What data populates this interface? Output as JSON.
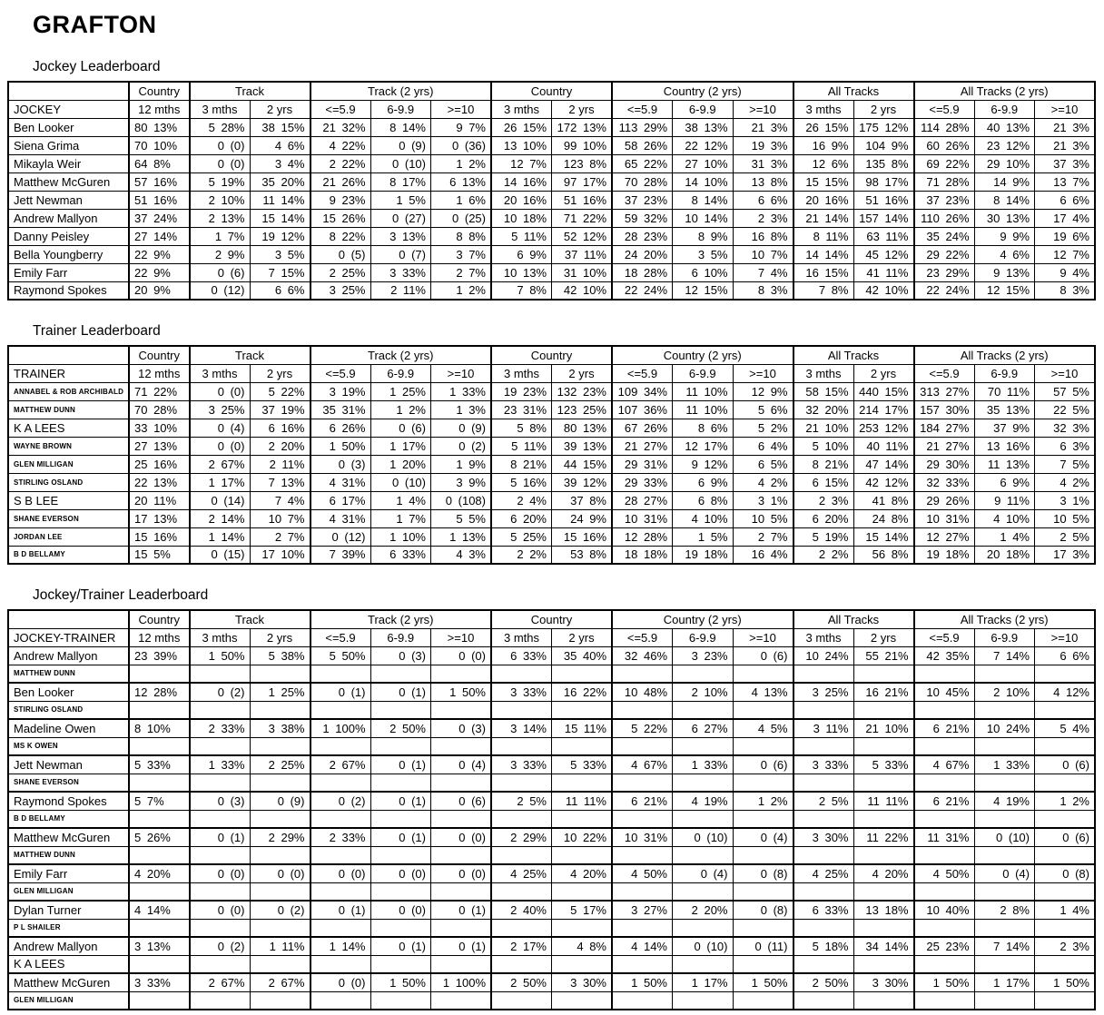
{
  "title": "GRAFTON",
  "colors": {
    "text": "#000000",
    "background": "#ffffff",
    "border": "#000000"
  },
  "column_groups": [
    {
      "label": "Country",
      "span": 1
    },
    {
      "label": "Track",
      "span": 2
    },
    {
      "label": "Track (2 yrs)",
      "span": 3
    },
    {
      "label": "Country",
      "span": 2
    },
    {
      "label": "Country (2 yrs)",
      "span": 3
    },
    {
      "label": "All Tracks",
      "span": 2
    },
    {
      "label": "All Tracks (2 yrs)",
      "span": 3
    }
  ],
  "sub_headers": [
    "12 mths",
    "3 mths",
    "2 yrs",
    "<=5.9",
    "6-9.9",
    ">=10",
    "3 mths",
    "2 yrs",
    "<=5.9",
    "6-9.9",
    ">=10",
    "3 mths",
    "2 yrs",
    "<=5.9",
    "6-9.9",
    ">=10"
  ],
  "tables": [
    {
      "section_title": "Jockey Leaderboard",
      "name_header": "JOCKEY",
      "rows": [
        {
          "name": "Ben Looker",
          "cells": [
            "80 13%",
            "5 28%",
            "38 15%",
            "21 32%",
            "8 14%",
            "9 7%",
            "26 15%",
            "172 13%",
            "113 29%",
            "38 13%",
            "21 3%",
            "26 15%",
            "175 12%",
            "114 28%",
            "40 13%",
            "21 3%"
          ]
        },
        {
          "name": "Siena Grima",
          "cells": [
            "70 10%",
            "0 (0)",
            "4 6%",
            "4 22%",
            "0 (9)",
            "0 (36)",
            "13 10%",
            "99 10%",
            "58 26%",
            "22 12%",
            "19 3%",
            "16 9%",
            "104 9%",
            "60 26%",
            "23 12%",
            "21 3%"
          ]
        },
        {
          "name": "Mikayla Weir",
          "cells": [
            "64 8%",
            "0 (0)",
            "3 4%",
            "2 22%",
            "0 (10)",
            "1 2%",
            "12 7%",
            "123 8%",
            "65 22%",
            "27 10%",
            "31 3%",
            "12 6%",
            "135 8%",
            "69 22%",
            "29 10%",
            "37 3%"
          ]
        },
        {
          "name": "Matthew McGuren",
          "cells": [
            "57 16%",
            "5 19%",
            "35 20%",
            "21 26%",
            "8 17%",
            "6 13%",
            "14 16%",
            "97 17%",
            "70 28%",
            "14 10%",
            "13 8%",
            "15 15%",
            "98 17%",
            "71 28%",
            "14 9%",
            "13 7%"
          ]
        },
        {
          "name": "Jett Newman",
          "cells": [
            "51 16%",
            "2 10%",
            "11 14%",
            "9 23%",
            "1 5%",
            "1 6%",
            "20 16%",
            "51 16%",
            "37 23%",
            "8 14%",
            "6 6%",
            "20 16%",
            "51 16%",
            "37 23%",
            "8 14%",
            "6 6%"
          ]
        },
        {
          "name": "Andrew Mallyon",
          "cells": [
            "37 24%",
            "2 13%",
            "15 14%",
            "15 26%",
            "0 (27)",
            "0 (25)",
            "10 18%",
            "71 22%",
            "59 32%",
            "10 14%",
            "2 3%",
            "21 14%",
            "157 14%",
            "110 26%",
            "30 13%",
            "17 4%"
          ]
        },
        {
          "name": "Danny Peisley",
          "cells": [
            "27 14%",
            "1 7%",
            "19 12%",
            "8 22%",
            "3 13%",
            "8 8%",
            "5 11%",
            "52 12%",
            "28 23%",
            "8 9%",
            "16 8%",
            "8 11%",
            "63 11%",
            "35 24%",
            "9 9%",
            "19 6%"
          ]
        },
        {
          "name": "Bella Youngberry",
          "cells": [
            "22 9%",
            "2 9%",
            "3 5%",
            "0 (5)",
            "0 (7)",
            "3 7%",
            "6 9%",
            "37 11%",
            "24 20%",
            "3 5%",
            "10 7%",
            "14 14%",
            "45 12%",
            "29 22%",
            "4 6%",
            "12 7%"
          ]
        },
        {
          "name": "Emily Farr",
          "cells": [
            "22 9%",
            "0 (6)",
            "7 15%",
            "2 25%",
            "3 33%",
            "2 7%",
            "10 13%",
            "31 10%",
            "18 28%",
            "6 10%",
            "7 4%",
            "16 15%",
            "41 11%",
            "23 29%",
            "9 13%",
            "9 4%"
          ]
        },
        {
          "name": "Raymond Spokes",
          "cells": [
            "20 9%",
            "0 (12)",
            "6 6%",
            "3 25%",
            "2 11%",
            "1 2%",
            "7 8%",
            "42 10%",
            "22 24%",
            "12 15%",
            "8 3%",
            "7 8%",
            "42 10%",
            "22 24%",
            "12 15%",
            "8 3%"
          ]
        }
      ]
    },
    {
      "section_title": "Trainer Leaderboard",
      "name_header": "TRAINER",
      "rows": [
        {
          "name": "ANNABEL & ROB ARCHIBALD",
          "cells": [
            "71 22%",
            "0 (0)",
            "5 22%",
            "3 19%",
            "1 25%",
            "1 33%",
            "19 23%",
            "132 23%",
            "109 34%",
            "11 10%",
            "12 9%",
            "58 15%",
            "440 15%",
            "313 27%",
            "70 11%",
            "57 5%"
          ]
        },
        {
          "name": "MATTHEW DUNN",
          "cells": [
            "70 28%",
            "3 25%",
            "37 19%",
            "35 31%",
            "1 2%",
            "1 3%",
            "23 31%",
            "123 25%",
            "107 36%",
            "11 10%",
            "5 6%",
            "32 20%",
            "214 17%",
            "157 30%",
            "35 13%",
            "22 5%"
          ]
        },
        {
          "name": "K A LEES",
          "cells": [
            "33 10%",
            "0 (4)",
            "6 16%",
            "6 26%",
            "0 (6)",
            "0 (9)",
            "5 8%",
            "80 13%",
            "67 26%",
            "8 6%",
            "5 2%",
            "21 10%",
            "253 12%",
            "184 27%",
            "37 9%",
            "32 3%"
          ]
        },
        {
          "name": "WAYNE BROWN",
          "cells": [
            "27 13%",
            "0 (0)",
            "2 20%",
            "1 50%",
            "1 17%",
            "0 (2)",
            "5 11%",
            "39 13%",
            "21 27%",
            "12 17%",
            "6 4%",
            "5 10%",
            "40 11%",
            "21 27%",
            "13 16%",
            "6 3%"
          ]
        },
        {
          "name": "GLEN MILLIGAN",
          "cells": [
            "25 16%",
            "2 67%",
            "2 11%",
            "0 (3)",
            "1 20%",
            "1 9%",
            "8 21%",
            "44 15%",
            "29 31%",
            "9 12%",
            "6 5%",
            "8 21%",
            "47 14%",
            "29 30%",
            "11 13%",
            "7 5%"
          ]
        },
        {
          "name": "STIRLING OSLAND",
          "cells": [
            "22 13%",
            "1 17%",
            "7 13%",
            "4 31%",
            "0 (10)",
            "3 9%",
            "5 16%",
            "39 12%",
            "29 33%",
            "6 9%",
            "4 2%",
            "6 15%",
            "42 12%",
            "32 33%",
            "6 9%",
            "4 2%"
          ]
        },
        {
          "name": "S B LEE",
          "cells": [
            "20 11%",
            "0 (14)",
            "7 4%",
            "6 17%",
            "1 4%",
            "0 (108)",
            "2 4%",
            "37 8%",
            "28 27%",
            "6 8%",
            "3 1%",
            "2 3%",
            "41 8%",
            "29 26%",
            "9 11%",
            "3 1%"
          ]
        },
        {
          "name": "SHANE EVERSON",
          "cells": [
            "17 13%",
            "2 14%",
            "10 7%",
            "4 31%",
            "1 7%",
            "5 5%",
            "6 20%",
            "24 9%",
            "10 31%",
            "4 10%",
            "10 5%",
            "6 20%",
            "24 8%",
            "10 31%",
            "4 10%",
            "10 5%"
          ]
        },
        {
          "name": "JORDAN LEE",
          "cells": [
            "15 16%",
            "1 14%",
            "2 7%",
            "0 (12)",
            "1 10%",
            "1 13%",
            "5 25%",
            "15 16%",
            "12 28%",
            "1 5%",
            "2 7%",
            "5 19%",
            "15 14%",
            "12 27%",
            "1 4%",
            "2 5%"
          ]
        },
        {
          "name": "B D BELLAMY",
          "cells": [
            "15 5%",
            "0 (15)",
            "17 10%",
            "7 39%",
            "6 33%",
            "4 3%",
            "2 2%",
            "53 8%",
            "18 18%",
            "19 18%",
            "16 4%",
            "2 2%",
            "56 8%",
            "19 18%",
            "20 18%",
            "17 3%"
          ]
        }
      ]
    },
    {
      "section_title": "Jockey/Trainer Leaderboard",
      "name_header": "JOCKEY-TRAINER",
      "rows": [
        {
          "name": "Andrew Mallyon",
          "trainer": "MATTHEW DUNN",
          "cells": [
            "23 39%",
            "1 50%",
            "5 38%",
            "5 50%",
            "0 (3)",
            "0 (0)",
            "6 33%",
            "35 40%",
            "32 46%",
            "3 23%",
            "0 (6)",
            "10 24%",
            "55 21%",
            "42 35%",
            "7 14%",
            "6 6%"
          ]
        },
        {
          "name": "Ben Looker",
          "trainer": "STIRLING OSLAND",
          "cells": [
            "12 28%",
            "0 (2)",
            "1 25%",
            "0 (1)",
            "0 (1)",
            "1 50%",
            "3 33%",
            "16 22%",
            "10 48%",
            "2 10%",
            "4 13%",
            "3 25%",
            "16 21%",
            "10 45%",
            "2 10%",
            "4 12%"
          ]
        },
        {
          "name": "Madeline Owen",
          "trainer": "MS K OWEN",
          "cells": [
            "8 10%",
            "2 33%",
            "3 38%",
            "1 100%",
            "2 50%",
            "0 (3)",
            "3 14%",
            "15 11%",
            "5 22%",
            "6 27%",
            "4 5%",
            "3 11%",
            "21 10%",
            "6 21%",
            "10 24%",
            "5 4%"
          ]
        },
        {
          "name": "Jett Newman",
          "trainer": "SHANE EVERSON",
          "cells": [
            "5 33%",
            "1 33%",
            "2 25%",
            "2 67%",
            "0 (1)",
            "0 (4)",
            "3 33%",
            "5 33%",
            "4 67%",
            "1 33%",
            "0 (6)",
            "3 33%",
            "5 33%",
            "4 67%",
            "1 33%",
            "0 (6)"
          ]
        },
        {
          "name": "Raymond Spokes",
          "trainer": "B D BELLAMY",
          "cells": [
            "5 7%",
            "0 (3)",
            "0 (9)",
            "0 (2)",
            "0 (1)",
            "0 (6)",
            "2 5%",
            "11 11%",
            "6 21%",
            "4 19%",
            "1 2%",
            "2 5%",
            "11 11%",
            "6 21%",
            "4 19%",
            "1 2%"
          ]
        },
        {
          "name": "Matthew McGuren",
          "trainer": "MATTHEW DUNN",
          "cells": [
            "5 26%",
            "0 (1)",
            "2 29%",
            "2 33%",
            "0 (1)",
            "0 (0)",
            "2 29%",
            "10 22%",
            "10 31%",
            "0 (10)",
            "0 (4)",
            "3 30%",
            "11 22%",
            "11 31%",
            "0 (10)",
            "0 (6)"
          ]
        },
        {
          "name": "Emily Farr",
          "trainer": "GLEN MILLIGAN",
          "cells": [
            "4 20%",
            "0 (0)",
            "0 (0)",
            "0 (0)",
            "0 (0)",
            "0 (0)",
            "4 25%",
            "4 20%",
            "4 50%",
            "0 (4)",
            "0 (8)",
            "4 25%",
            "4 20%",
            "4 50%",
            "0 (4)",
            "0 (8)"
          ]
        },
        {
          "name": "Dylan Turner",
          "trainer": "P L SHAILER",
          "cells": [
            "4 14%",
            "0 (0)",
            "0 (2)",
            "0 (1)",
            "0 (0)",
            "0 (1)",
            "2 40%",
            "5 17%",
            "3 27%",
            "2 20%",
            "0 (8)",
            "6 33%",
            "13 18%",
            "10 40%",
            "2 8%",
            "1 4%"
          ]
        },
        {
          "name": "Andrew Mallyon",
          "trainer": "K A LEES",
          "cells": [
            "3 13%",
            "0 (2)",
            "1 11%",
            "1 14%",
            "0 (1)",
            "0 (1)",
            "2 17%",
            "4 8%",
            "4 14%",
            "0 (10)",
            "0 (11)",
            "5 18%",
            "34 14%",
            "25 23%",
            "7 14%",
            "2 3%"
          ]
        },
        {
          "name": "Matthew McGuren",
          "trainer": "GLEN MILLIGAN",
          "cells": [
            "3 33%",
            "2 67%",
            "2 67%",
            "0 (0)",
            "1 50%",
            "1 100%",
            "2 50%",
            "3 30%",
            "1 50%",
            "1 17%",
            "1 50%",
            "2 50%",
            "3 30%",
            "1 50%",
            "1 17%",
            "1 50%"
          ]
        }
      ]
    }
  ]
}
